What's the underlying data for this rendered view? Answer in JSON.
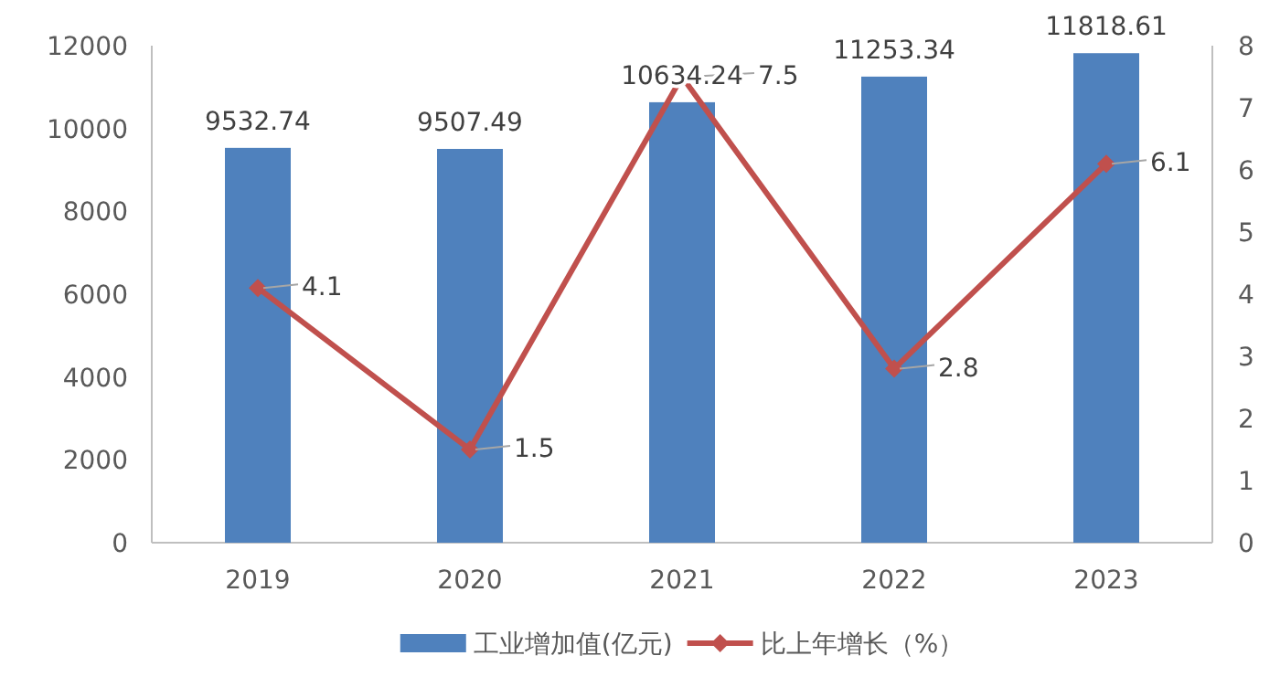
{
  "chart_data": {
    "type": "bar",
    "categories": [
      "2019",
      "2020",
      "2021",
      "2022",
      "2023"
    ],
    "series": [
      {
        "name": "工业增加值(亿元)",
        "color": "#4f81bd",
        "values": [
          9532.74,
          9507.49,
          10634.24,
          11253.34,
          11818.61
        ]
      },
      {
        "name": "比上年增长（%）",
        "type": "line",
        "axis": "y2",
        "color": "#c0504d",
        "values": [
          4.1,
          1.5,
          7.5,
          2.8,
          6.1
        ]
      }
    ],
    "ylim": [
      0,
      12000
    ],
    "yticks": [
      0,
      2000,
      4000,
      6000,
      8000,
      10000,
      12000
    ],
    "y2lim": [
      0,
      8
    ],
    "y2ticks": [
      0,
      1,
      2,
      3,
      4,
      5,
      6,
      7,
      8
    ],
    "data_labels": true,
    "legend": "bottom",
    "marker": "diamond",
    "grid": false
  }
}
